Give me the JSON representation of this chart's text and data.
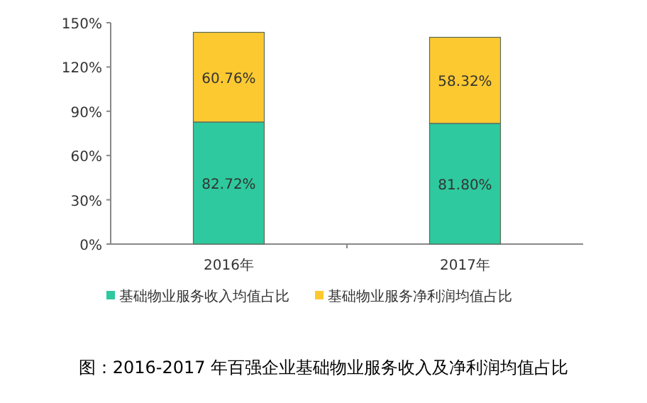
{
  "chart_data": {
    "type": "bar",
    "stacked": true,
    "categories": [
      "2016年",
      "2017年"
    ],
    "series": [
      {
        "name": "基础物业服务收入均值占比",
        "color": "#2ec99e",
        "values": [
          82.72,
          81.8
        ],
        "value_labels": [
          "82.72%",
          "81.80%"
        ]
      },
      {
        "name": "基础物业服务净利润均值占比",
        "color": "#fcc931",
        "values": [
          60.76,
          58.32
        ],
        "value_labels": [
          "60.76%",
          "58.32%"
        ]
      }
    ],
    "ylim": [
      0,
      150
    ],
    "yticks": [
      {
        "value": 0,
        "label": "0%"
      },
      {
        "value": 30,
        "label": "30%"
      },
      {
        "value": 60,
        "label": "60%"
      },
      {
        "value": 90,
        "label": "90%"
      },
      {
        "value": 120,
        "label": "120%"
      },
      {
        "value": 150,
        "label": "150%"
      }
    ],
    "legend": "bottom",
    "annotations": [
      "图：2016-2017 年百强企业基础物业服务收入及净利润均值占比"
    ]
  }
}
